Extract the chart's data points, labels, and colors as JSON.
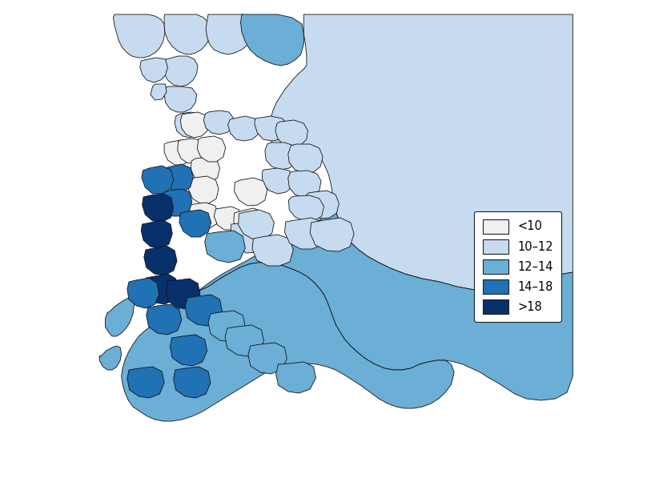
{
  "legend_labels": [
    "<10",
    "10–12",
    "12–14",
    "14–18",
    ">18"
  ],
  "legend_colors": [
    "#f0f0f0",
    "#c6dbef",
    "#6baed6",
    "#2171b5",
    "#08306b"
  ],
  "background_color": "#ffffff",
  "border_color": "#111111",
  "border_width": 0.6,
  "figsize": [
    8.33,
    6.02
  ],
  "dpi": 100,
  "legend_fontsize": 10.5
}
